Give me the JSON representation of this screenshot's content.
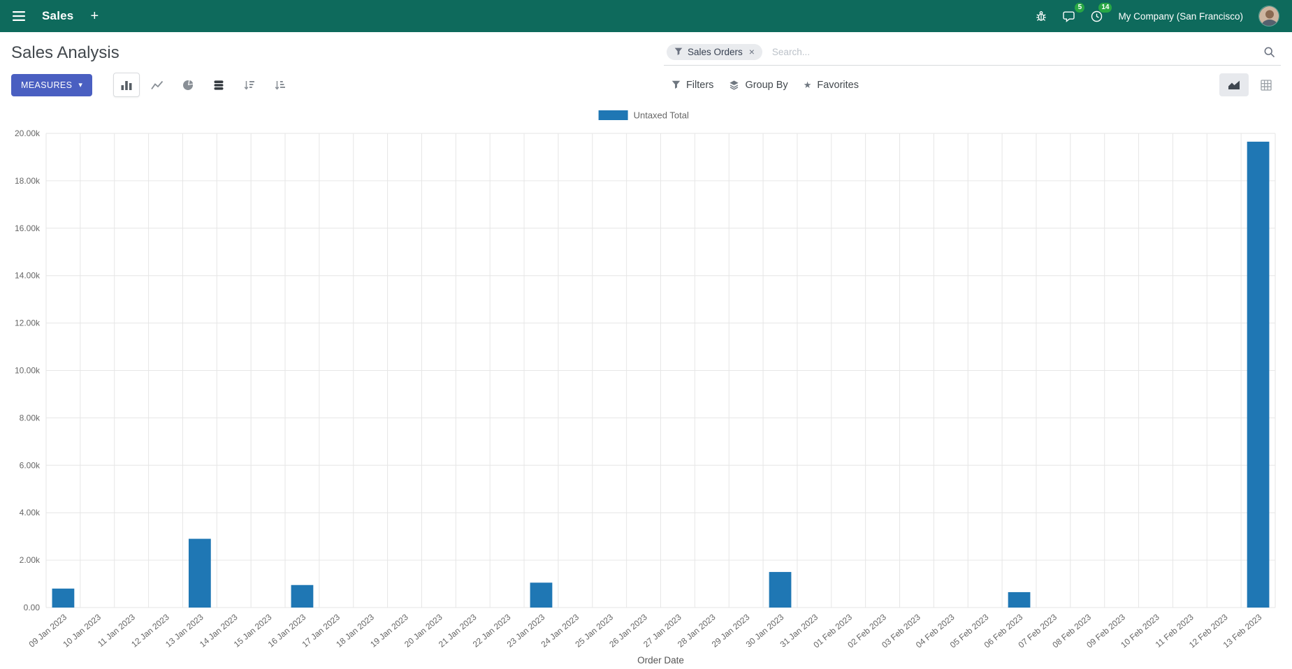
{
  "navbar": {
    "app_name": "Sales",
    "company": "My Company (San Francisco)",
    "messages_badge": "5",
    "activities_badge": "14"
  },
  "control_panel": {
    "title": "Sales Analysis",
    "measures_label": "MEASURES",
    "filters_label": "Filters",
    "group_by_label": "Group By",
    "favorites_label": "Favorites",
    "search": {
      "facet_label": "Sales Orders",
      "placeholder": "Search..."
    }
  },
  "icons": {
    "plus": "+",
    "caret": "▾",
    "close": "×",
    "star": "★"
  },
  "colors": {
    "navbar_bg": "#0e6a5c",
    "primary": "#4a5fc1",
    "badge_green": "#28a745",
    "facet_bg": "#e9ebee",
    "bar_blue": "#1f77b4",
    "grid_line": "#e6e6e6",
    "axis_text": "#666666"
  },
  "chart_data": {
    "type": "bar",
    "title": "",
    "xlabel": "Order Date",
    "ylabel": "",
    "ylim": [
      0,
      20000
    ],
    "y_tick_step": 2000,
    "grid": true,
    "legend_position": "top-center",
    "categories": [
      "09 Jan 2023",
      "10 Jan 2023",
      "11 Jan 2023",
      "12 Jan 2023",
      "13 Jan 2023",
      "14 Jan 2023",
      "15 Jan 2023",
      "16 Jan 2023",
      "17 Jan 2023",
      "18 Jan 2023",
      "19 Jan 2023",
      "20 Jan 2023",
      "21 Jan 2023",
      "22 Jan 2023",
      "23 Jan 2023",
      "24 Jan 2023",
      "25 Jan 2023",
      "26 Jan 2023",
      "27 Jan 2023",
      "28 Jan 2023",
      "29 Jan 2023",
      "30 Jan 2023",
      "31 Jan 2023",
      "01 Feb 2023",
      "02 Feb 2023",
      "03 Feb 2023",
      "04 Feb 2023",
      "05 Feb 2023",
      "06 Feb 2023",
      "07 Feb 2023",
      "08 Feb 2023",
      "09 Feb 2023",
      "10 Feb 2023",
      "11 Feb 2023",
      "12 Feb 2023",
      "13 Feb 2023"
    ],
    "series": [
      {
        "name": "Untaxed Total",
        "color": "#1f77b4",
        "values": [
          800,
          0,
          0,
          0,
          2900,
          0,
          0,
          950,
          0,
          0,
          0,
          0,
          0,
          0,
          1050,
          0,
          0,
          0,
          0,
          0,
          0,
          1500,
          0,
          0,
          0,
          0,
          0,
          0,
          650,
          0,
          0,
          0,
          0,
          0,
          0,
          19650
        ]
      }
    ]
  }
}
